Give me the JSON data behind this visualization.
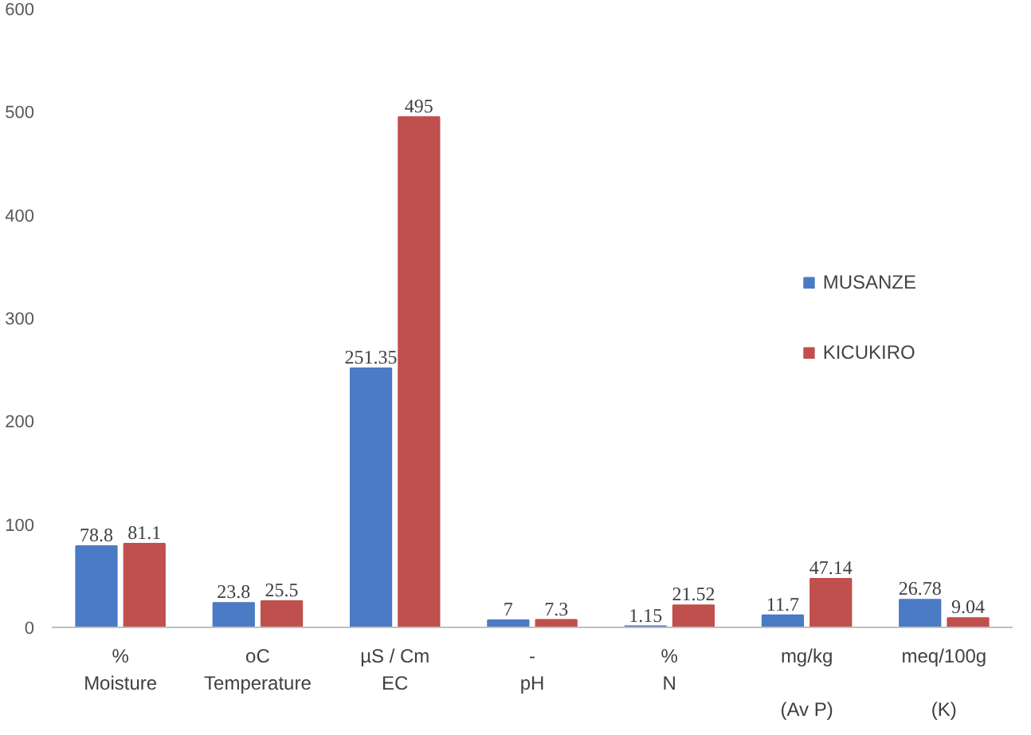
{
  "chart_data": {
    "type": "bar",
    "categories": [
      "%\nMoisture",
      "oC\nTemperature",
      "µS / Cm\nEC",
      "-\npH",
      "%\nN",
      "mg/kg\n\n(Av P)",
      "meq/100g\n\n(K)"
    ],
    "series": [
      {
        "name": "MUSANZE",
        "color": "#4a7bc4",
        "values": [
          78.8,
          23.8,
          251.35,
          7,
          1.15,
          11.7,
          26.78
        ]
      },
      {
        "name": "KICUKIRO",
        "color": "#c0504d",
        "values": [
          81.1,
          25.5,
          495,
          7.3,
          21.52,
          47.14,
          9.04
        ]
      }
    ],
    "ylim": [
      0,
      600
    ],
    "yticks": [
      0,
      100,
      200,
      300,
      400,
      500,
      600
    ],
    "grid": false,
    "legend": "right",
    "data_labels": true
  }
}
